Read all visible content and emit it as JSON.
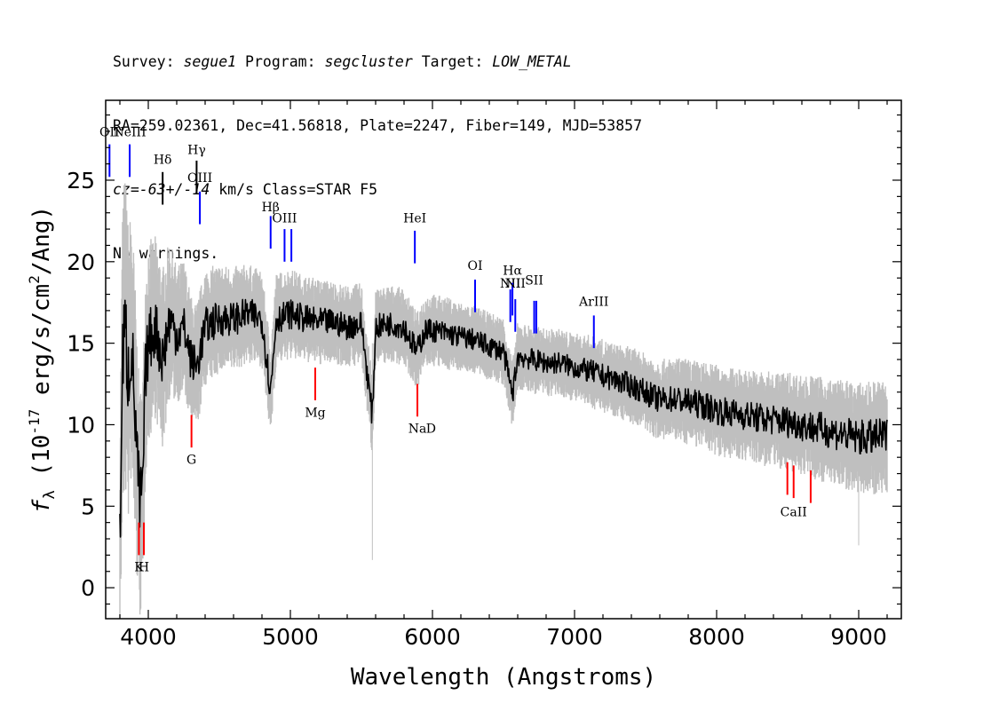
{
  "header": {
    "survey_label": "Survey:",
    "survey": "segue1",
    "program_label": "Program:",
    "program": "segcluster",
    "target_label": "Target:",
    "target": "LOW_METAL",
    "line2": "RA=259.02361, Dec=41.56818, Plate=2247, Fiber=149, MJD=53857",
    "cz": "cz=-63+/-14",
    "cz_rest": " km/s Class=STAR F5",
    "line4": "No warnings."
  },
  "colors": {
    "flux": "#000000",
    "error_band": "#bfbfbf",
    "emission_line": "#0000ff",
    "absorption_line": "#ff0000",
    "neutral_line": "#000000"
  },
  "chart_data": {
    "type": "line",
    "xlabel": "Wavelength (Angstroms)",
    "ylabel_main": "f",
    "ylabel_sub": "λ",
    "ylabel_rest": " (10",
    "ylabel_exp": "-17",
    "ylabel_unit": " erg/s/cm",
    "ylabel_unit_exp": "2",
    "ylabel_end": "/Ang)",
    "xlim": [
      3700,
      9300
    ],
    "ylim": [
      -1.9,
      29.9
    ],
    "xticks": [
      4000,
      5000,
      6000,
      7000,
      8000,
      9000
    ],
    "yticks": [
      0,
      5,
      10,
      15,
      20,
      25
    ],
    "series": [
      {
        "role": "flux",
        "x": [
          3800,
          3820,
          3840,
          3860,
          3880,
          3900,
          3920,
          3940,
          3960,
          3980,
          4000,
          4050,
          4100,
          4150,
          4200,
          4250,
          4300,
          4340,
          4400,
          4500,
          4600,
          4700,
          4800,
          4861,
          4900,
          5000,
          5100,
          5200,
          5300,
          5400,
          5500,
          5577,
          5600,
          5700,
          5800,
          5890,
          5950,
          6000,
          6100,
          6200,
          6300,
          6400,
          6500,
          6563,
          6600,
          6700,
          6800,
          6900,
          7000,
          7100,
          7200,
          7300,
          7400,
          7500,
          7600,
          7700,
          7800,
          7900,
          8000,
          8100,
          8200,
          8300,
          8400,
          8500,
          8600,
          8700,
          8800,
          8900,
          9000,
          9100,
          9200
        ],
        "y": [
          3.0,
          14.5,
          15.5,
          13.0,
          15.0,
          12.0,
          8.0,
          5.0,
          6.0,
          13.0,
          15.0,
          16.0,
          14.0,
          16.5,
          15.5,
          16.0,
          14.0,
          13.5,
          16.0,
          16.5,
          16.5,
          16.8,
          16.5,
          12.0,
          16.5,
          16.8,
          16.5,
          16.3,
          16.3,
          16.0,
          16.2,
          10.5,
          16.0,
          16.2,
          16.0,
          14.5,
          15.8,
          15.8,
          15.6,
          15.4,
          15.2,
          14.8,
          14.5,
          11.8,
          14.2,
          14.0,
          13.8,
          13.8,
          13.5,
          13.3,
          13.0,
          12.7,
          12.4,
          12.0,
          11.5,
          11.6,
          11.4,
          11.2,
          10.9,
          10.7,
          10.6,
          10.4,
          10.3,
          10.2,
          10.0,
          9.8,
          9.6,
          9.4,
          9.2,
          9.2,
          9.3
        ]
      },
      {
        "role": "error_band",
        "half_width": [
          5.0,
          7.5,
          7.0,
          6.5,
          6.0,
          6.0,
          5.5,
          5.0,
          5.0,
          4.5,
          4.5,
          4.0,
          4.0,
          3.5,
          3.0,
          3.0,
          2.8,
          2.8,
          2.6,
          2.4,
          2.3,
          2.2,
          2.1,
          2.1,
          2.0,
          2.0,
          1.9,
          1.9,
          1.8,
          1.8,
          1.8,
          1.8,
          1.7,
          1.7,
          1.7,
          1.7,
          1.6,
          1.6,
          1.6,
          1.5,
          1.5,
          1.5,
          1.5,
          1.5,
          1.5,
          1.5,
          1.5,
          1.5,
          1.5,
          1.6,
          1.6,
          1.6,
          1.7,
          1.7,
          1.8,
          1.8,
          1.9,
          1.9,
          2.0,
          2.0,
          2.0,
          2.1,
          2.1,
          2.2,
          2.2,
          2.3,
          2.3,
          2.4,
          2.4,
          2.5,
          2.5
        ]
      }
    ],
    "line_markers": [
      {
        "label": "OII",
        "x": 3727,
        "y0": 25.2,
        "y1": 27.2,
        "kind": "emission",
        "ly": 27.7
      },
      {
        "label": "NeIII",
        "x": 3869,
        "y0": 25.2,
        "y1": 27.2,
        "kind": "emission",
        "ly": 27.7
      },
      {
        "label": "Hδ",
        "x": 4101,
        "y0": 23.5,
        "y1": 25.5,
        "kind": "neutral",
        "ly": 26.0
      },
      {
        "label": "Hγ",
        "x": 4340,
        "y0": 24.2,
        "y1": 26.2,
        "kind": "neutral",
        "ly": 26.6
      },
      {
        "label": "OIII",
        "x": 4363,
        "y0": 22.3,
        "y1": 24.3,
        "kind": "emission",
        "ly": 24.9
      },
      {
        "label": "Hβ",
        "x": 4861,
        "y0": 20.8,
        "y1": 22.8,
        "kind": "emission",
        "ly": 23.1
      },
      {
        "label": "OIII",
        "x": 4959,
        "y0": 20.0,
        "y1": 22.0,
        "kind": "emission",
        "ly": 22.4
      },
      {
        "label": "",
        "x": 5007,
        "y0": 20.0,
        "y1": 22.0,
        "kind": "emission",
        "ly": 22.4
      },
      {
        "label": "HeI",
        "x": 5876,
        "y0": 19.9,
        "y1": 21.9,
        "kind": "emission",
        "ly": 22.4
      },
      {
        "label": "OI",
        "x": 6300,
        "y0": 16.9,
        "y1": 18.9,
        "kind": "emission",
        "ly": 19.5
      },
      {
        "label": "NII",
        "x": 6548,
        "y0": 16.3,
        "y1": 18.3,
        "kind": "emission",
        "ly": 18.4
      },
      {
        "label": "Hα",
        "x": 6563,
        "y0": 16.7,
        "y1": 18.7,
        "kind": "emission",
        "ly": 19.2
      },
      {
        "label": "NII",
        "x": 6583,
        "y0": 15.7,
        "y1": 17.7,
        "kind": "emission",
        "ly": 18.4
      },
      {
        "label": "SII",
        "x": 6716,
        "y0": 15.6,
        "y1": 17.6,
        "kind": "emission",
        "ly": 18.6
      },
      {
        "label": "",
        "x": 6731,
        "y0": 15.6,
        "y1": 17.6,
        "kind": "emission",
        "ly": 18.6
      },
      {
        "label": "ArIII",
        "x": 7136,
        "y0": 14.7,
        "y1": 16.7,
        "kind": "emission",
        "ly": 17.3
      },
      {
        "label": "K",
        "x": 3934,
        "y0": 2.0,
        "y1": 4.0,
        "kind": "absorption",
        "ly": 1.0
      },
      {
        "label": "H",
        "x": 3969,
        "y0": 2.0,
        "y1": 4.0,
        "kind": "absorption",
        "ly": 1.0
      },
      {
        "label": "G",
        "x": 4304,
        "y0": 8.6,
        "y1": 10.6,
        "kind": "absorption",
        "ly": 7.6
      },
      {
        "label": "Mg",
        "x": 5175,
        "y0": 11.5,
        "y1": 13.5,
        "kind": "absorption",
        "ly": 10.5
      },
      {
        "label": "Na",
        "x": 5894,
        "y0": 10.5,
        "y1": 12.5,
        "kind": "absorption",
        "ly": 9.5
      },
      {
        "label": "D",
        "x": 5990,
        "y0": 0,
        "y1": 0,
        "kind": "label-only",
        "ly": 9.5
      },
      {
        "label": "CaII",
        "x": 8542,
        "y0": 5.5,
        "y1": 7.5,
        "kind": "absorption",
        "ly": 4.4
      },
      {
        "label": "",
        "x": 8498,
        "y0": 5.7,
        "y1": 7.7,
        "kind": "absorption",
        "ly": 4.4
      },
      {
        "label": "",
        "x": 8662,
        "y0": 5.2,
        "y1": 7.2,
        "kind": "absorption",
        "ly": 4.4
      }
    ]
  }
}
